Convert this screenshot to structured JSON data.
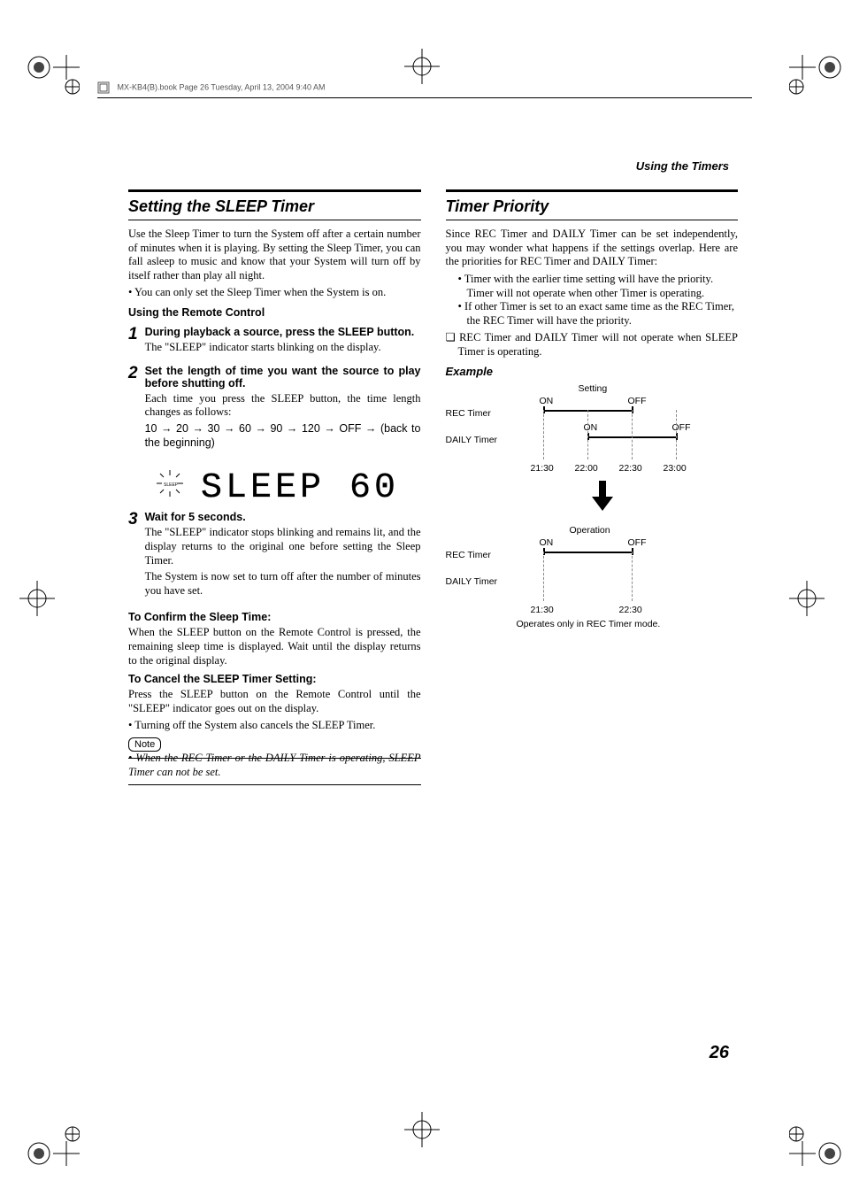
{
  "meta": {
    "header_text": "MX-KB4(B).book  Page 26  Tuesday, April 13, 2004  9:40 AM",
    "running_head": "Using the Timers",
    "page_number": "26"
  },
  "left": {
    "title": "Setting the SLEEP Timer",
    "intro": "Use the Sleep Timer to turn the System off after a certain number of minutes when it is playing. By setting the Sleep Timer, you can fall asleep to music and know that your System will turn off by itself rather than play all night.",
    "intro_bullet": "You can only set the Sleep Timer when the System is on.",
    "remote_heading": "Using the Remote Control",
    "steps": [
      {
        "num": "1",
        "head": "During playback a source, press the SLEEP button.",
        "body": "The \"SLEEP\" indicator starts blinking on the display."
      },
      {
        "num": "2",
        "head": "Set the length of time you want the source to play before shutting off.",
        "body1": "Each time you press the SLEEP button, the time length changes as follows:",
        "seq": "10  →  20  →  30  →  60  →  90  →  120  →  OFF  →  (back to the beginning)"
      },
      {
        "num": "3",
        "head": "Wait for 5 seconds.",
        "body1": "The \"SLEEP\" indicator stops blinking and remains lit, and the display returns to the original one before setting the Sleep Timer.",
        "body2": "The System is now set to turn off after the number of minutes you have set."
      }
    ],
    "display_text": "SLEEP   60",
    "confirm_head": "To Confirm the Sleep Time:",
    "confirm_body": "When the SLEEP button on the Remote Control is pressed, the remaining sleep time is displayed. Wait until the display returns to the original display.",
    "cancel_head": "To Cancel the SLEEP Timer Setting:",
    "cancel_body": "Press the SLEEP button on the Remote Control until the \"SLEEP\" indicator goes out on the display.",
    "cancel_bullet": "Turning off the System also cancels the SLEEP Timer.",
    "note_label": "Note",
    "note_text": "• When the REC Timer or the DAILY Timer is operating, SLEEP Timer can not be set."
  },
  "right": {
    "title": "Timer Priority",
    "intro": "Since REC Timer and DAILY Timer can be set independently, you may wonder what happens if the settings overlap. Here are the priorities for REC Timer and DAILY Timer:",
    "bullets": [
      "Timer with the earlier time setting will have the priority. Timer will not operate when other Timer is operating.",
      "If other Timer is set to an exact same time as the REC Timer, the REC Timer will have the priority."
    ],
    "qnote": "❏ REC Timer and DAILY Timer will not operate when SLEEP Timer is operating.",
    "example_label": "Example",
    "diagram": {
      "setting_label": "Setting",
      "operation_label": "Operation",
      "rows": {
        "rec": "REC Timer",
        "daily": "DAILY Timer"
      },
      "on": "ON",
      "off": "OFF",
      "times_setting": [
        "21:30",
        "22:00",
        "22:30",
        "23:00"
      ],
      "times_operation": [
        "21:30",
        "22:30"
      ],
      "caption": "Operates only in REC Timer mode.",
      "rec_on": 0,
      "rec_off": 2,
      "daily_on": 1,
      "daily_off": 3,
      "time_positions": [
        110,
        160,
        210,
        260
      ],
      "bar_y_setting1": 30,
      "bar_y_setting2": 60,
      "bar_y_op1": 195
    }
  },
  "colors": {
    "text": "#000000",
    "background": "#ffffff",
    "dash": "#888888"
  }
}
